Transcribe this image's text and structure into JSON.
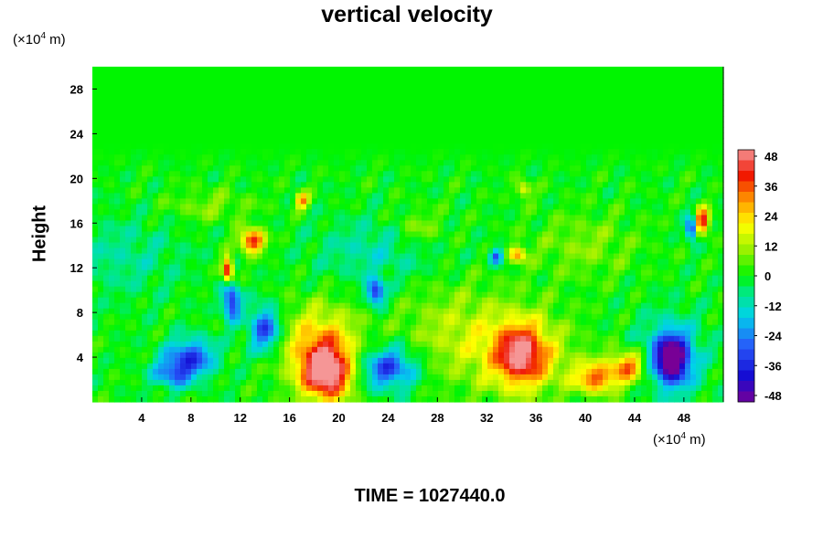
{
  "chart_data": {
    "type": "heatmap",
    "title": "vertical velocity",
    "ylabel": "Height",
    "xlabel": "",
    "y_unit_label": {
      "prefix": "(×10",
      "exp": "4",
      "suffix": " m)"
    },
    "x_unit_label": {
      "prefix": "(×10",
      "exp": "4",
      "suffix": " m)"
    },
    "xlim": [
      0,
      51.2
    ],
    "ylim": [
      0,
      30
    ],
    "x_ticks": [
      "4",
      "8",
      "12",
      "16",
      "20",
      "24",
      "28",
      "32",
      "36",
      "40",
      "44",
      "48"
    ],
    "y_ticks": [
      "4",
      "8",
      "12",
      "16",
      "20",
      "24",
      "28"
    ],
    "colorbar": {
      "ticks": [
        "48",
        "36",
        "24",
        "12",
        "0",
        "-12",
        "-24",
        "-36",
        "-48"
      ],
      "range": [
        -48,
        48
      ]
    },
    "features": [
      {
        "x": 19.0,
        "y": 2.5,
        "value": 44,
        "sx": 1.4,
        "sy": 1.7
      },
      {
        "x": 18.5,
        "y": 5.0,
        "value": 26,
        "sx": 2.2,
        "sy": 2.5
      },
      {
        "x": 34.8,
        "y": 4.2,
        "value": 34,
        "sx": 1.4,
        "sy": 1.8
      },
      {
        "x": 34.5,
        "y": 4.5,
        "value": 18,
        "sx": 3.0,
        "sy": 2.8
      },
      {
        "x": 47.0,
        "y": 3.8,
        "value": -46,
        "sx": 0.9,
        "sy": 1.4
      },
      {
        "x": 47.0,
        "y": 4.0,
        "value": -20,
        "sx": 1.8,
        "sy": 2.5
      },
      {
        "x": 8.0,
        "y": 4.0,
        "value": -30,
        "sx": 1.4,
        "sy": 1.2
      },
      {
        "x": 6.5,
        "y": 2.5,
        "value": -22,
        "sx": 1.2,
        "sy": 0.9
      },
      {
        "x": 14.0,
        "y": 6.5,
        "value": -32,
        "sx": 0.9,
        "sy": 1.4
      },
      {
        "x": 11.3,
        "y": 9.0,
        "value": -36,
        "sx": 0.5,
        "sy": 1.2
      },
      {
        "x": 24.0,
        "y": 3.0,
        "value": -32,
        "sx": 1.6,
        "sy": 1.3
      },
      {
        "x": 23.0,
        "y": 9.8,
        "value": -36,
        "sx": 0.5,
        "sy": 0.8
      },
      {
        "x": 43.5,
        "y": 3.3,
        "value": 24,
        "sx": 0.9,
        "sy": 0.9
      },
      {
        "x": 40.8,
        "y": 2.0,
        "value": 22,
        "sx": 1.0,
        "sy": 0.8
      },
      {
        "x": 42.0,
        "y": 2.5,
        "value": 14,
        "sx": 2.5,
        "sy": 1.2
      },
      {
        "x": 13.0,
        "y": 14.4,
        "value": 42,
        "sx": 0.7,
        "sy": 0.7
      },
      {
        "x": 11.0,
        "y": 11.8,
        "value": 46,
        "sx": 0.3,
        "sy": 0.8
      },
      {
        "x": 49.5,
        "y": 16.2,
        "value": 42,
        "sx": 0.4,
        "sy": 0.8
      },
      {
        "x": 48.6,
        "y": 15.5,
        "value": -40,
        "sx": 0.3,
        "sy": 0.7
      },
      {
        "x": 34.5,
        "y": 13.2,
        "value": 28,
        "sx": 0.5,
        "sy": 0.5
      },
      {
        "x": 32.8,
        "y": 13.0,
        "value": -30,
        "sx": 0.4,
        "sy": 0.5
      },
      {
        "x": 17.0,
        "y": 18.0,
        "value": 30,
        "sx": 0.4,
        "sy": 0.5
      },
      {
        "x": 35.0,
        "y": 19.0,
        "value": 22,
        "sx": 0.4,
        "sy": 0.5
      },
      {
        "x": 29.0,
        "y": 6.5,
        "value": 10,
        "sx": 3.0,
        "sy": 3.0
      },
      {
        "x": 23.0,
        "y": 13.5,
        "value": -10,
        "sx": 3.5,
        "sy": 2.0
      },
      {
        "x": 2.5,
        "y": 13.0,
        "value": -8,
        "sx": 3.5,
        "sy": 2.5
      },
      {
        "x": 40.0,
        "y": 14.0,
        "value": 8,
        "sx": 3.0,
        "sy": 2.0
      },
      {
        "x": 26.5,
        "y": 15.5,
        "value": 10,
        "sx": 1.5,
        "sy": 1.2
      },
      {
        "x": 9.5,
        "y": 17.5,
        "value": 8,
        "sx": 2.5,
        "sy": 1.0
      }
    ]
  }
}
